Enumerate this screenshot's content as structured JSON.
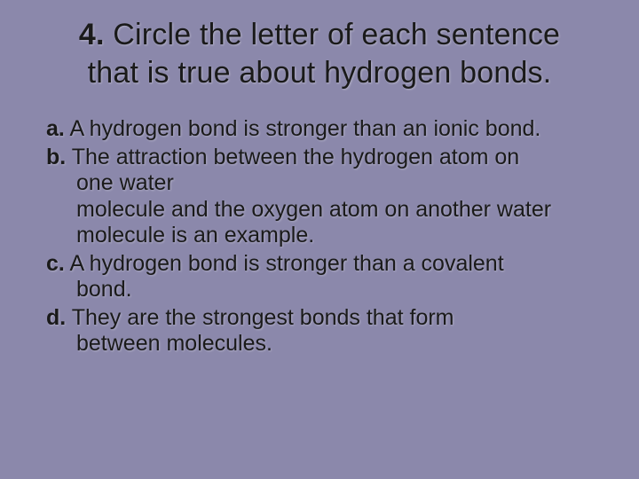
{
  "background_color": "#8b88ab",
  "text_color": "#1a1a1a",
  "slide": {
    "question_number": "4.",
    "title_line1": "Circle the letter of each sentence",
    "title_line2": "that is true about hydrogen bonds.",
    "title_fontsize": 34,
    "option_fontsize": 25,
    "options": {
      "a": {
        "letter": "a.",
        "text": "A hydrogen bond is stronger than an ionic bond."
      },
      "b": {
        "letter": "b.",
        "text_l1": "The attraction between the hydrogen atom on",
        "text_l2": "one water",
        "text_l3": "molecule and the oxygen atom on another water",
        "text_l4": "molecule is an example."
      },
      "c": {
        "letter": "c.",
        "text_l1": "A hydrogen bond is stronger than a covalent",
        "text_l2": "bond."
      },
      "d": {
        "letter": "d.",
        "text_l1": "They are the strongest bonds that form",
        "text_l2": "between molecules."
      }
    }
  }
}
